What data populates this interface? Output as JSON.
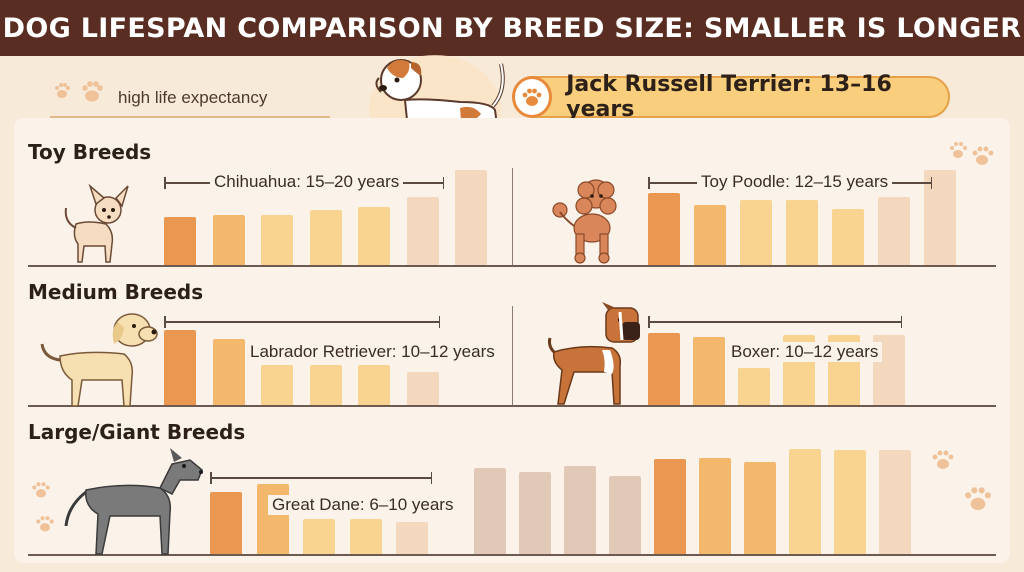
{
  "title": "DOG LIFESPAN COMPARISON BY BREED SIZE: SMALLER IS LONGER",
  "legend_text": "high life expectancy",
  "featured": {
    "label": "Jack Russell Terrier: 13–16 years",
    "icon": "paw-icon"
  },
  "sections": [
    {
      "label": "Toy Breeds",
      "dog_icon": "small-dog-icon"
    },
    {
      "label": "Medium Breeds",
      "dog_icon": "medium-dog-icon"
    },
    {
      "label": "Large/Giant Breeds",
      "dog_icon": "giant-dog-icon"
    }
  ],
  "colors": {
    "title_bg": "#5a2d22",
    "featured_bg": "#f9cf7e",
    "bar_dark": "#ea9752",
    "bar_mid": "#f4b86d",
    "bar_light": "#f9d491",
    "bar_pale": "#f3d8bd",
    "bar_muted": "#e2c8b6"
  },
  "chart_data": {
    "type": "bar",
    "title": "DOG LIFESPAN COMPARISON BY BREED SIZE: SMALLER IS LONGER",
    "groups": [
      {
        "section": "Toy Breeds",
        "breed": "Chihuahua",
        "range_label": "Chihuahua: 15–20 years",
        "range": [
          15,
          20
        ],
        "values": [
          48,
          50,
          50,
          55,
          58,
          68,
          95
        ],
        "shades": [
          "dark",
          "mid",
          "light",
          "light",
          "light",
          "pale",
          "pale"
        ]
      },
      {
        "section": "Toy Breeds",
        "breed": "Toy Poodle",
        "range_label": "Toy Poodle: 12–15 years",
        "range": [
          12,
          15
        ],
        "values": [
          72,
          60,
          65,
          65,
          56,
          68,
          95
        ],
        "shades": [
          "dark",
          "mid",
          "light",
          "light",
          "light",
          "pale",
          "pale"
        ]
      },
      {
        "section": "Medium Breeds",
        "breed": "Labrador Retriever",
        "range_label": "Labrador Retriever: 10–12 years",
        "range": [
          10,
          12
        ],
        "values": [
          75,
          66,
          40,
          40,
          40,
          33
        ],
        "shades": [
          "dark",
          "mid",
          "light",
          "light",
          "light",
          "pale"
        ]
      },
      {
        "section": "Medium Breeds",
        "breed": "Boxer",
        "range_label": "Boxer: 10–12 years",
        "range": [
          10,
          12
        ],
        "values": [
          72,
          68,
          37,
          70,
          70,
          70
        ],
        "shades": [
          "dark",
          "mid",
          "light",
          "light",
          "light",
          "pale"
        ]
      },
      {
        "section": "Large/Giant Breeds",
        "breed": "Great Dane",
        "range_label": "Great Dane: 6–10 years",
        "range": [
          6,
          10
        ],
        "values": [
          62,
          70,
          35,
          35,
          32
        ],
        "shades": [
          "dark",
          "mid",
          "light",
          "light",
          "pale"
        ]
      },
      {
        "section": "Large/Giant Breeds",
        "breed": "",
        "range_label": "",
        "range": null,
        "values": [
          86,
          82,
          88,
          78,
          95,
          96,
          92,
          105,
          104,
          104
        ],
        "shades": [
          "muted",
          "muted",
          "muted",
          "muted",
          "dark",
          "mid",
          "mid",
          "light",
          "light",
          "pale"
        ]
      }
    ]
  }
}
